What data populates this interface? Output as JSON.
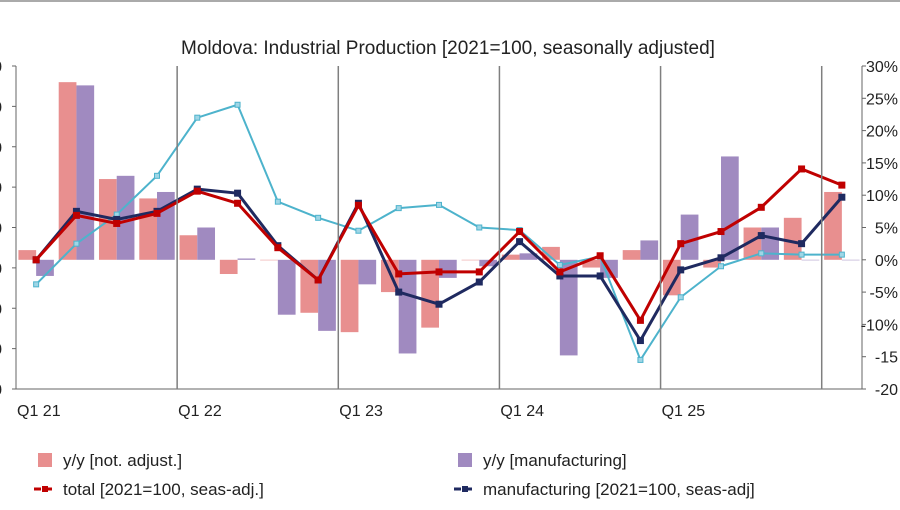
{
  "chart_data": {
    "type": "bar",
    "title": "Moldova: Industrial Production [2021=100, seasonally adjusted]",
    "x_tick_labels": [
      "Q1 21",
      "Q1 22",
      "Q1 23",
      "Q1 24",
      "Q1 25"
    ],
    "left_axis": {
      "ticks": [
        "0",
        "0",
        "0",
        "0",
        "0",
        "0",
        "0",
        "0",
        "0"
      ]
    },
    "right_axis": {
      "range": [
        -20,
        30
      ],
      "ticks": [
        "30%",
        "25%",
        "20%",
        "15%",
        "10%",
        "5%",
        "0%",
        "-5%",
        "-10%",
        "-15",
        "-20"
      ]
    },
    "left_range": [
      60,
      140
    ],
    "periods": 21,
    "series": [
      {
        "name": "y/y [not. adjust.]",
        "kind": "bar",
        "axis": "right",
        "color": "#e88f8f",
        "values": [
          1.5,
          27.5,
          12.5,
          9.5,
          3.8,
          -2.2,
          0,
          -8.2,
          -11.2,
          -5,
          -10.5,
          0,
          0.8,
          2.0,
          -1.2,
          1.5,
          -5.5,
          -1.2,
          5.0,
          6.5,
          10.5
        ]
      },
      {
        "name": "y/y [manufacturing]",
        "kind": "bar",
        "axis": "right",
        "color": "#a08ac0",
        "values": [
          -2.5,
          27,
          13,
          10.5,
          5.0,
          0.2,
          -8.5,
          -11,
          -3.8,
          -14.5,
          -2.8,
          -1.0,
          1.0,
          -14.8,
          -2.8,
          3.0,
          7.0,
          16.0,
          5.0,
          0,
          0
        ]
      },
      {
        "name": "total [2021=100, seas-adj.]",
        "kind": "line",
        "axis": "left",
        "color": "#c00000",
        "values": [
          92,
          103,
          101,
          103.5,
          109,
          106,
          95,
          87,
          105.5,
          88.5,
          89,
          89,
          99,
          89,
          93,
          77,
          96,
          99,
          105,
          114.5,
          110.5
        ]
      },
      {
        "name": "manufacturing [2021=100, seas-adj]",
        "kind": "line",
        "axis": "left",
        "color": "#1f2a60",
        "values": [
          92,
          104,
          102,
          104,
          109.5,
          108.5,
          95.5,
          87,
          106,
          84,
          81,
          86.5,
          96.5,
          88,
          88,
          72,
          89.5,
          92.5,
          98,
          96,
          107.5
        ]
      },
      {
        "name": "",
        "kind": "line",
        "axis": "right",
        "color": "#4db3cc",
        "values": [
          -3.8,
          2.5,
          7.0,
          13.0,
          22.0,
          24.0,
          9.0,
          6.5,
          4.5,
          8.0,
          8.5,
          5.0,
          4.6,
          -0.8,
          0.5,
          -15.5,
          -5.8,
          -1.0,
          1.0,
          0.8,
          0.8
        ]
      }
    ],
    "legend_position": "bottom",
    "legend": [
      {
        "label": "y/y [not. adjust.]",
        "type": "box",
        "color": "#e88f8f"
      },
      {
        "label": "y/y [manufacturing]",
        "type": "box",
        "color": "#a08ac0"
      },
      {
        "label": "total [2021=100, seas-adj.]",
        "type": "line",
        "color": "#c00000"
      },
      {
        "label": "manufacturing [2021=100, seas-adj]",
        "type": "line",
        "color": "#1f2a60"
      }
    ],
    "grid": {
      "vertical_separators": true,
      "horizontal": false
    }
  }
}
